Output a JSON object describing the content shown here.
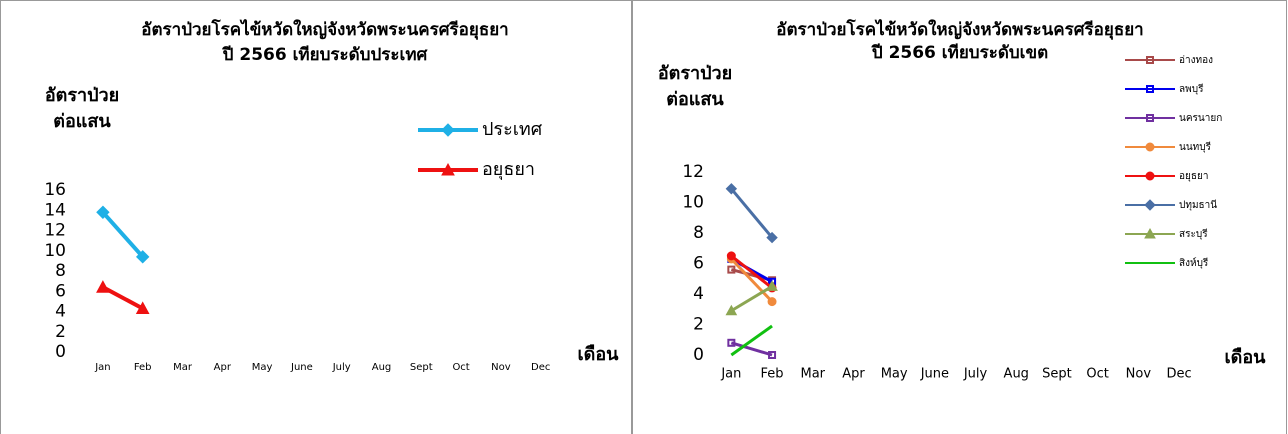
{
  "chart_data": [
    {
      "type": "line",
      "title": "อัตราป่วยโรคไข้หวัดใหญ่จังหวัดพระนครศรีอยุธยา",
      "subtitle": "ปี 2566 เทียบระดับประเทศ",
      "ylabel": [
        "อัตราป่วย",
        "ต่อแสน"
      ],
      "xlabel": "เดือน",
      "categories": [
        "Jan",
        "Feb",
        "Mar",
        "Apr",
        "May",
        "June",
        "July",
        "Aug",
        "Sept",
        "Oct",
        "Nov",
        "Dec"
      ],
      "ylim": [
        0,
        16
      ],
      "yticks": [
        0,
        2,
        4,
        6,
        8,
        10,
        12,
        14,
        16
      ],
      "legend": "right",
      "series": [
        {
          "name": "ประเทศ",
          "color": "#1fb0e6",
          "marker": "diamond",
          "values": [
            13.8,
            9.4,
            null,
            null,
            null,
            null,
            null,
            null,
            null,
            null,
            null,
            null
          ]
        },
        {
          "name": "อยุธยา",
          "color": "#ee1111",
          "marker": "triangle",
          "values": [
            6.4,
            4.3,
            null,
            null,
            null,
            null,
            null,
            null,
            null,
            null,
            null,
            null
          ]
        }
      ]
    },
    {
      "type": "line",
      "title": "อัตราป่วยโรคไข้หวัดใหญ่จังหวัดพระนครศรีอยุธยา",
      "subtitle": "ปี 2566 เทียบระดับเขต",
      "ylabel": [
        "อัตราป่วย",
        "ต่อแสน"
      ],
      "xlabel": "เดือน",
      "categories": [
        "Jan",
        "Feb",
        "Mar",
        "Apr",
        "May",
        "June",
        "July",
        "Aug",
        "Sept",
        "Oct",
        "Nov",
        "Dec"
      ],
      "ylim": [
        0,
        12
      ],
      "yticks": [
        0,
        2,
        4,
        6,
        8,
        10,
        12
      ],
      "legend": "right",
      "series": [
        {
          "name": "อ่างทอง",
          "color": "#a84a4a",
          "marker": "square",
          "values": [
            5.6,
            4.9,
            null,
            null,
            null,
            null,
            null,
            null,
            null,
            null,
            null,
            null
          ]
        },
        {
          "name": "ลพบุรี",
          "color": "#0000ee",
          "marker": "square",
          "values": [
            6.3,
            4.8,
            null,
            null,
            null,
            null,
            null,
            null,
            null,
            null,
            null,
            null
          ]
        },
        {
          "name": "นครนายก",
          "color": "#7030a0",
          "marker": "square",
          "values": [
            0.8,
            0,
            null,
            null,
            null,
            null,
            null,
            null,
            null,
            null,
            null,
            null
          ]
        },
        {
          "name": "นนทบุรี",
          "color": "#f08a3c",
          "marker": "circle",
          "values": [
            6.3,
            3.5,
            null,
            null,
            null,
            null,
            null,
            null,
            null,
            null,
            null,
            null
          ]
        },
        {
          "name": "อยุธยา",
          "color": "#ee1111",
          "marker": "circle",
          "values": [
            6.5,
            4.4,
            null,
            null,
            null,
            null,
            null,
            null,
            null,
            null,
            null,
            null
          ]
        },
        {
          "name": "ปทุมธานี",
          "color": "#4a6fa5",
          "marker": "diamond",
          "values": [
            10.9,
            7.7,
            null,
            null,
            null,
            null,
            null,
            null,
            null,
            null,
            null,
            null
          ]
        },
        {
          "name": "สระบุรี",
          "color": "#8ca652",
          "marker": "triangle",
          "values": [
            2.9,
            4.5,
            null,
            null,
            null,
            null,
            null,
            null,
            null,
            null,
            null,
            null
          ]
        },
        {
          "name": "สิงห์บุรี",
          "color": "#11c011",
          "marker": "none",
          "values": [
            0,
            1.9,
            null,
            null,
            null,
            null,
            null,
            null,
            null,
            null,
            null,
            null
          ]
        }
      ]
    }
  ]
}
